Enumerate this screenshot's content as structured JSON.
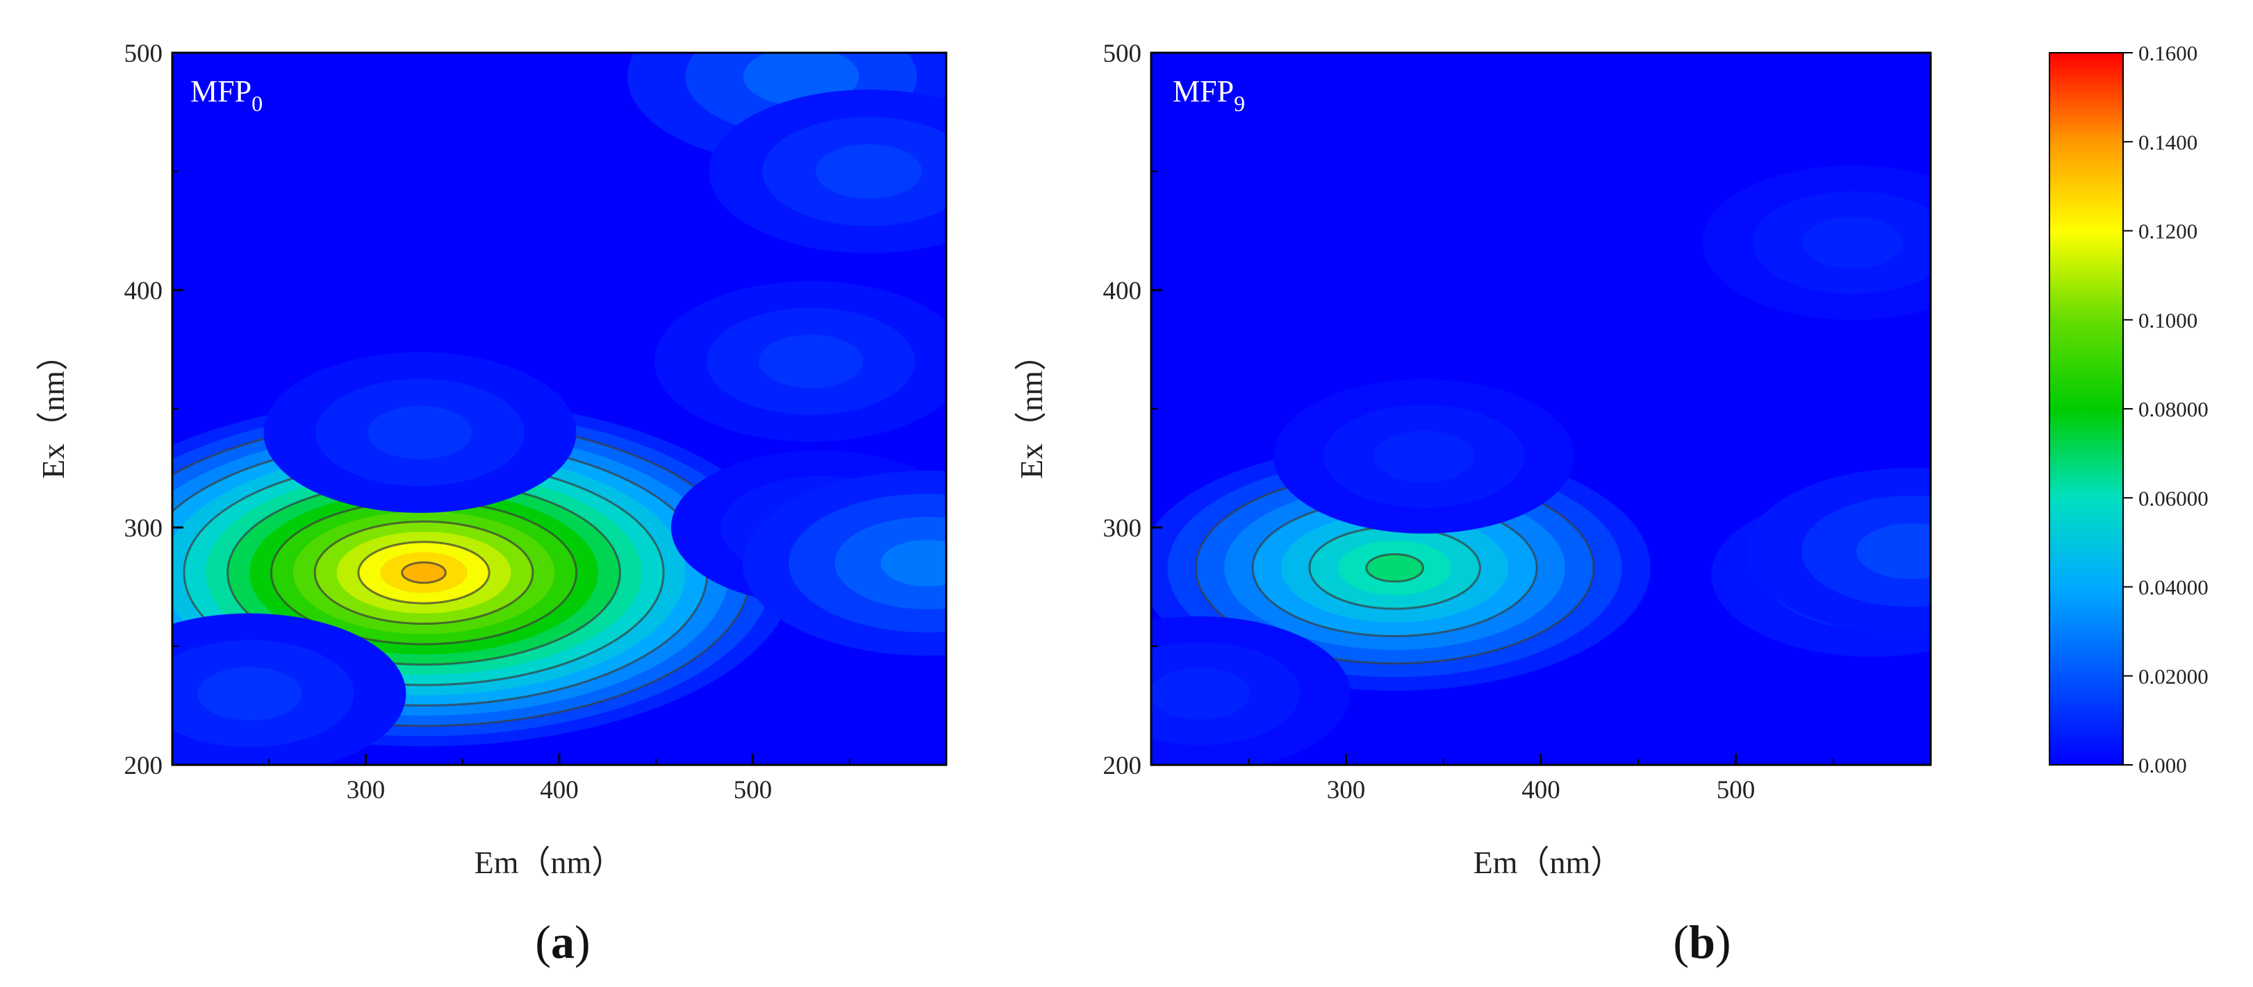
{
  "chart_data": [
    {
      "type": "heatmap",
      "subtype": "contour",
      "panel_label": "(a)",
      "title": "MFP",
      "title_subscript": "0",
      "xlabel": "Em（nm）",
      "ylabel": "Ex（nm）",
      "xlim": [
        200,
        600
      ],
      "ylim": [
        200,
        500
      ],
      "xticks": [
        300,
        400,
        500
      ],
      "yticks": [
        200,
        300,
        400,
        500
      ],
      "grid": false,
      "peaks": [
        {
          "em": 330,
          "ex": 281,
          "intensity": 0.135
        },
        {
          "em": 240,
          "ex": 230,
          "intensity": 0.012
        },
        {
          "em": 328,
          "ex": 340,
          "intensity": 0.012
        },
        {
          "em": 530,
          "ex": 370,
          "intensity": 0.012
        },
        {
          "em": 535,
          "ex": 300,
          "intensity": 0.008
        },
        {
          "em": 590,
          "ex": 285,
          "intensity": 0.028
        },
        {
          "em": 525,
          "ex": 490,
          "intensity": 0.022
        },
        {
          "em": 560,
          "ex": 450,
          "intensity": 0.014
        }
      ]
    },
    {
      "type": "heatmap",
      "subtype": "contour",
      "panel_label": "(b)",
      "title": "MFP",
      "title_subscript": "9",
      "xlabel": "Em（nm）",
      "ylabel": "Ex（nm）",
      "xlim": [
        200,
        600
      ],
      "ylim": [
        200,
        500
      ],
      "xticks": [
        300,
        400,
        500
      ],
      "yticks": [
        200,
        300,
        400,
        500
      ],
      "grid": false,
      "peaks": [
        {
          "em": 325,
          "ex": 283,
          "intensity": 0.068
        },
        {
          "em": 225,
          "ex": 230,
          "intensity": 0.008
        },
        {
          "em": 340,
          "ex": 330,
          "intensity": 0.008
        },
        {
          "em": 560,
          "ex": 420,
          "intensity": 0.008
        },
        {
          "em": 570,
          "ex": 280,
          "intensity": 0.014
        },
        {
          "em": 590,
          "ex": 290,
          "intensity": 0.016
        }
      ]
    }
  ],
  "colorbar": {
    "min": 0,
    "max": 0.16,
    "labels": [
      "0.000",
      "0.02000",
      "0.04000",
      "0.06000",
      "0.08000",
      "0.1000",
      "0.1200",
      "0.1400",
      "0.1600"
    ],
    "colors": [
      "#0000ff",
      "#0055ff",
      "#00aaff",
      "#00e0c0",
      "#00cc00",
      "#66dd00",
      "#ffff00",
      "#ff9900",
      "#ff0000"
    ]
  }
}
